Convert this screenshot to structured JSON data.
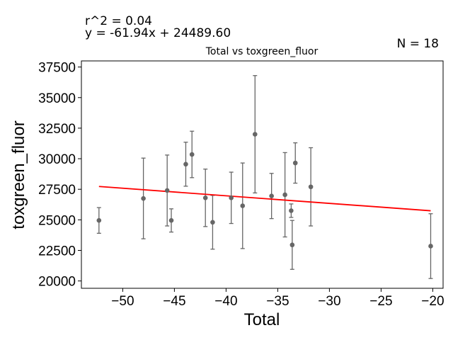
{
  "chart_data": {
    "type": "scatter",
    "title": "Total vs toxgreen_fluor",
    "xlabel": "Total",
    "ylabel": "toxgreen_fluor",
    "xlim": [
      -54,
      -19
    ],
    "ylim": [
      19400,
      38000
    ],
    "xticks": [
      -50,
      -45,
      -40,
      -35,
      -30,
      -25,
      -20
    ],
    "yticks": [
      20000,
      22500,
      25000,
      27500,
      30000,
      32500,
      35000,
      37500
    ],
    "annotations": {
      "r2": "r^2 = 0.04",
      "equation": "y = -61.94x + 24489.60",
      "n": "N = 18"
    },
    "regression": {
      "slope": -61.94,
      "intercept": 24489.6,
      "color": "#ff0000"
    },
    "marker_color": "#666666",
    "points": [
      {
        "x": -52.3,
        "y": 24950,
        "err_low": 1050,
        "err_high": 1050
      },
      {
        "x": -48.0,
        "y": 26750,
        "err_low": 3300,
        "err_high": 3300
      },
      {
        "x": -45.7,
        "y": 27400,
        "err_low": 2900,
        "err_high": 2900
      },
      {
        "x": -45.3,
        "y": 24950,
        "err_low": 950,
        "err_high": 950
      },
      {
        "x": -43.9,
        "y": 29550,
        "err_low": 1800,
        "err_high": 1800
      },
      {
        "x": -43.3,
        "y": 30350,
        "err_low": 1900,
        "err_high": 1900
      },
      {
        "x": -42.0,
        "y": 26800,
        "err_low": 2350,
        "err_high": 2350
      },
      {
        "x": -41.3,
        "y": 24800,
        "err_low": 2200,
        "err_high": 2200
      },
      {
        "x": -39.5,
        "y": 26800,
        "err_low": 2100,
        "err_high": 2100
      },
      {
        "x": -38.4,
        "y": 26150,
        "err_low": 3500,
        "err_high": 3500
      },
      {
        "x": -37.2,
        "y": 32000,
        "err_low": 4800,
        "err_high": 4800
      },
      {
        "x": -35.6,
        "y": 26950,
        "err_low": 1850,
        "err_high": 1850
      },
      {
        "x": -34.3,
        "y": 27050,
        "err_low": 3450,
        "err_high": 3450
      },
      {
        "x": -33.7,
        "y": 25750,
        "err_low": 550,
        "err_high": 550
      },
      {
        "x": -33.6,
        "y": 22950,
        "err_low": 2000,
        "err_high": 2000
      },
      {
        "x": -33.3,
        "y": 29650,
        "err_low": 1650,
        "err_high": 1650
      },
      {
        "x": -31.8,
        "y": 27700,
        "err_low": 3200,
        "err_high": 3200
      },
      {
        "x": -20.2,
        "y": 22850,
        "err_low": 2650,
        "err_high": 2650
      }
    ]
  }
}
